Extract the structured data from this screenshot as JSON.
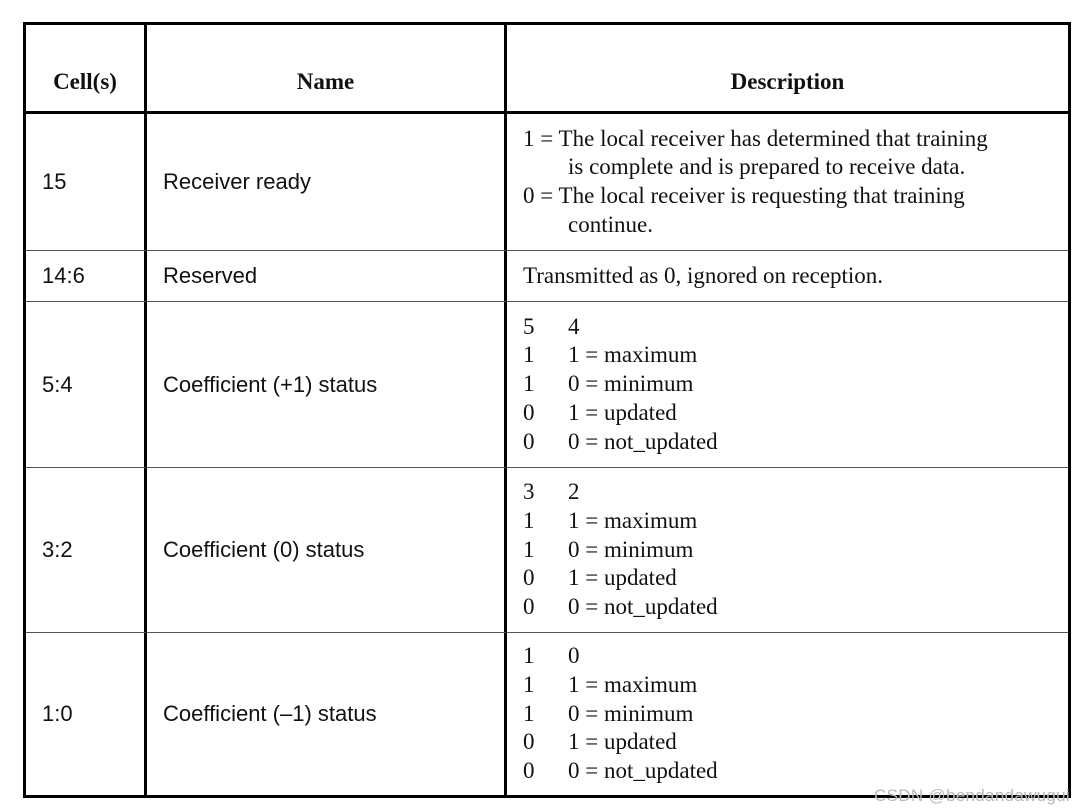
{
  "headers": {
    "cells": "Cell(s)",
    "name": "Name",
    "description": "Description"
  },
  "rows": [
    {
      "cells": "15",
      "name": "Receiver ready",
      "desc_lines": [
        "1 = The local receiver has determined that training",
        "is complete and is prepared to receive data.",
        "0 = The local receiver is requesting that training",
        "continue."
      ]
    },
    {
      "cells": "14:6",
      "name": "Reserved",
      "desc_lines": [
        "Transmitted as 0, ignored on reception."
      ]
    },
    {
      "cells": "5:4",
      "name": "Coefficient (+1) status",
      "bit_header": [
        "5",
        "4"
      ],
      "bit_rows": [
        [
          "1",
          "1 = maximum"
        ],
        [
          "1",
          "0 = minimum"
        ],
        [
          "0",
          "1 = updated"
        ],
        [
          "0",
          "0 = not_updated"
        ]
      ]
    },
    {
      "cells": "3:2",
      "name": "Coefficient (0) status",
      "bit_header": [
        "3",
        "2"
      ],
      "bit_rows": [
        [
          "1",
          "1 = maximum"
        ],
        [
          "1",
          "0 = minimum"
        ],
        [
          "0",
          "1 = updated"
        ],
        [
          "0",
          "0 = not_updated"
        ]
      ]
    },
    {
      "cells": "1:0",
      "name": "Coefficient (–1) status",
      "bit_header": [
        "1",
        "0"
      ],
      "bit_rows": [
        [
          "1",
          "1 = maximum"
        ],
        [
          "1",
          "0 = minimum"
        ],
        [
          "0",
          "1 = updated"
        ],
        [
          "0",
          "0 = not_updated"
        ]
      ]
    }
  ],
  "watermark": "CSDN @bendandawugui"
}
